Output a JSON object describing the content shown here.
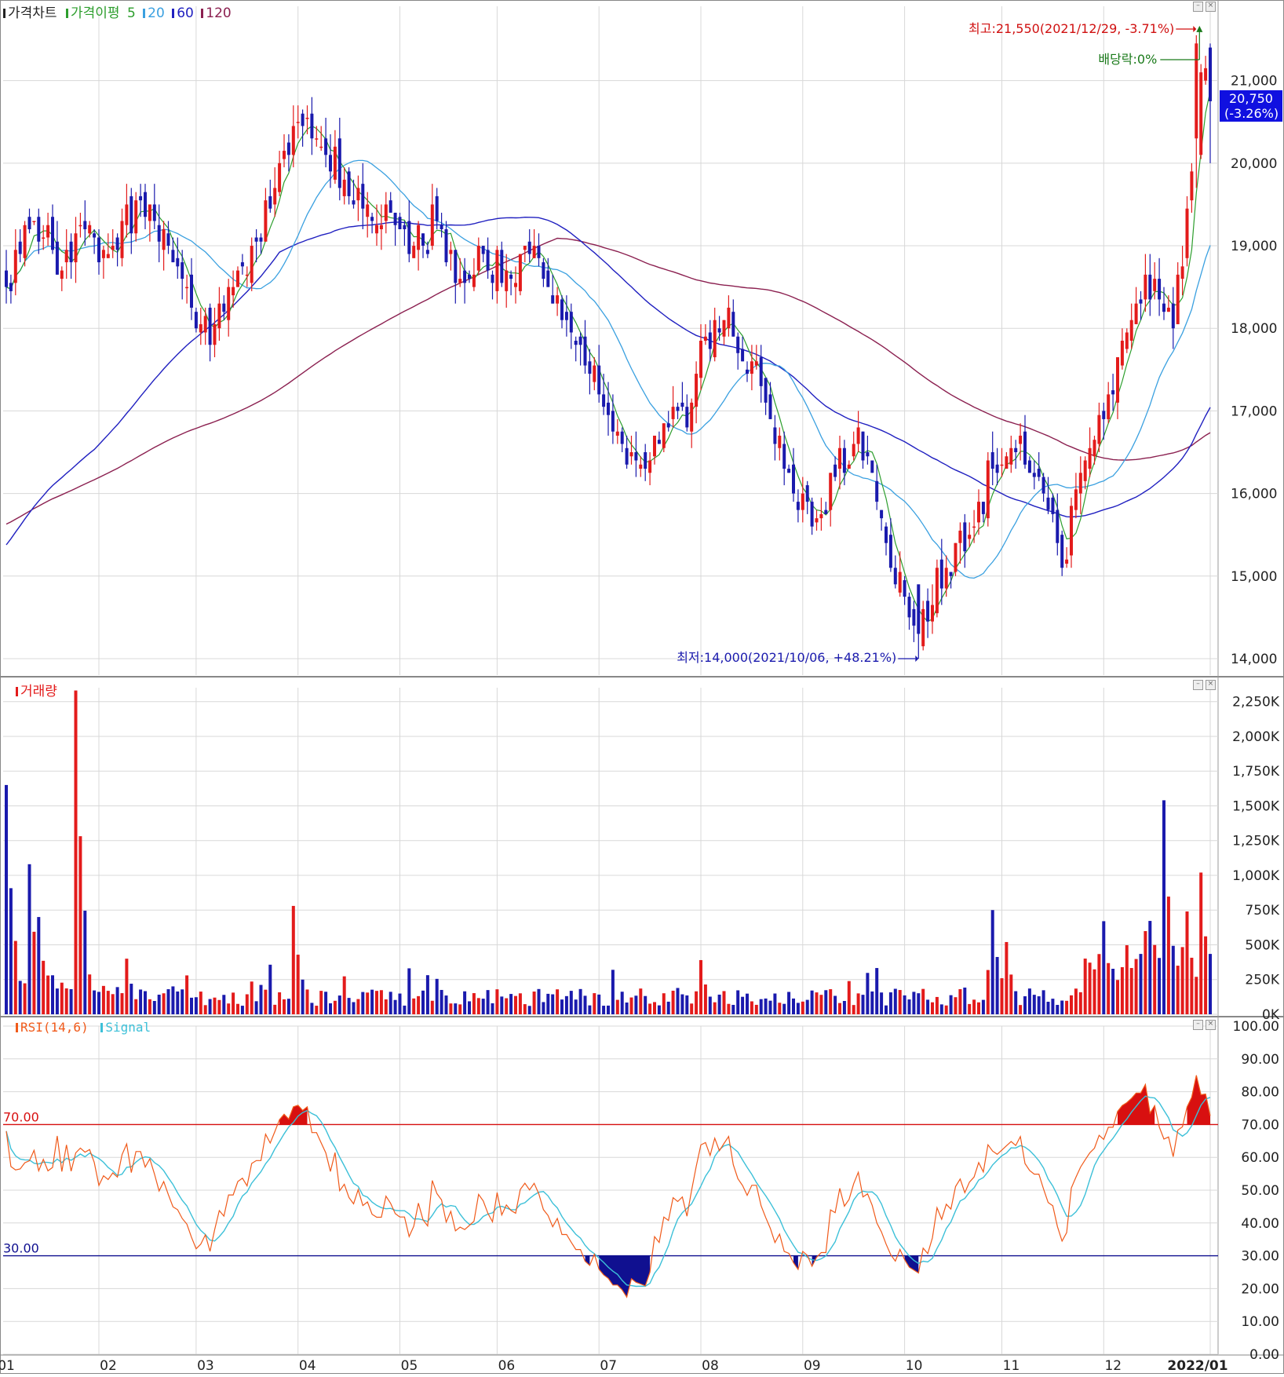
{
  "title_bar": {
    "price_label": "가격차트",
    "ma_label": "가격이평",
    "ma_periods": [
      "5",
      "20",
      "60",
      "120"
    ],
    "volume_label": "거래량",
    "rsi_label": "RSI(14,6)",
    "signal_label": "Signal"
  },
  "colors": {
    "up": "#e31b1b",
    "down": "#1a1aad",
    "ma5": "#2d9e2d",
    "ma20": "#3aa0e0",
    "ma60": "#2020c0",
    "ma120": "#8b2050",
    "rsi": "#f05a1a",
    "signal": "#3cc0d8",
    "overbought": "#d81010",
    "oversold": "#101090",
    "grid": "#d8d8d8"
  },
  "annotations": {
    "high_text": "최고:21,550(2021/12/29, -3.71%)",
    "low_text": "최저:14,000(2021/10/06, +48.21%)",
    "dividend_text": "배당락:0%",
    "last_price": "20,750",
    "last_change": "(-3.26%)"
  },
  "chart_data": [
    {
      "type": "candlestick",
      "name": "price",
      "ylim": [
        13800,
        21900
      ],
      "y_ticks": [
        "14,000",
        "15,000",
        "16,000",
        "17,000",
        "18,000",
        "19,000",
        "20,000",
        "21,000"
      ],
      "y_tick_values": [
        14000,
        15000,
        16000,
        17000,
        18000,
        19000,
        20000,
        21000
      ],
      "x_ticks": [
        "01",
        "02",
        "03",
        "04",
        "05",
        "06",
        "07",
        "08",
        "09",
        "10",
        "11",
        "12",
        "2022/01"
      ],
      "x_tick_dates": [
        "2021-01-04",
        "2021-02-01",
        "2021-03-02",
        "2021-04-01",
        "2021-05-03",
        "2021-06-01",
        "2021-07-01",
        "2021-08-02",
        "2021-09-01",
        "2021-10-01",
        "2021-11-01",
        "2021-12-01",
        "2022-01-03"
      ],
      "anchor_closes": [
        [
          "2021-01-04",
          18500
        ],
        [
          "2021-01-12",
          19300
        ],
        [
          "2021-01-20",
          18700
        ],
        [
          "2021-01-27",
          19200
        ],
        [
          "2021-02-01",
          18800
        ],
        [
          "2021-02-08",
          19300
        ],
        [
          "2021-02-16",
          19500
        ],
        [
          "2021-02-25",
          18600
        ],
        [
          "2021-03-05",
          17800
        ],
        [
          "2021-03-10",
          18200
        ],
        [
          "2021-03-18",
          19000
        ],
        [
          "2021-03-25",
          19700
        ],
        [
          "2021-04-01",
          20500
        ],
        [
          "2021-04-08",
          20200
        ],
        [
          "2021-04-15",
          19800
        ],
        [
          "2021-04-22",
          19500
        ],
        [
          "2021-04-29",
          19400
        ],
        [
          "2021-05-06",
          19000
        ],
        [
          "2021-05-13",
          19300
        ],
        [
          "2021-05-20",
          18600
        ],
        [
          "2021-05-27",
          18900
        ],
        [
          "2021-06-03",
          18700
        ],
        [
          "2021-06-10",
          18900
        ],
        [
          "2021-06-17",
          18300
        ],
        [
          "2021-06-24",
          17800
        ],
        [
          "2021-07-01",
          17200
        ],
        [
          "2021-07-08",
          16600
        ],
        [
          "2021-07-15",
          16300
        ],
        [
          "2021-07-22",
          16800
        ],
        [
          "2021-07-29",
          17100
        ],
        [
          "2021-08-03",
          17900
        ],
        [
          "2021-08-09",
          18100
        ],
        [
          "2021-08-17",
          17600
        ],
        [
          "2021-08-23",
          16900
        ],
        [
          "2021-08-30",
          16000
        ],
        [
          "2021-09-03",
          15600
        ],
        [
          "2021-09-10",
          16200
        ],
        [
          "2021-09-17",
          16800
        ],
        [
          "2021-09-27",
          15400
        ],
        [
          "2021-10-06",
          14300
        ],
        [
          "2021-10-14",
          15100
        ],
        [
          "2021-10-21",
          15500
        ],
        [
          "2021-10-28",
          16300
        ],
        [
          "2021-11-04",
          16500
        ],
        [
          "2021-11-11",
          16200
        ],
        [
          "2021-11-18",
          15100
        ],
        [
          "2021-11-25",
          16400
        ],
        [
          "2021-12-02",
          17200
        ],
        [
          "2021-12-09",
          18100
        ],
        [
          "2021-12-16",
          18600
        ],
        [
          "2021-12-22",
          18000
        ],
        [
          "2021-12-29",
          20200
        ],
        [
          "2021-12-30",
          21100
        ],
        [
          "2022-01-03",
          20750
        ]
      ],
      "series": [
        "price",
        "MA 5",
        "MA 20",
        "MA 60",
        "MA 120"
      ]
    },
    {
      "type": "bar",
      "name": "volume",
      "ylim": [
        0,
        2350000
      ],
      "y_ticks": [
        "0K",
        "250K",
        "500K",
        "750K",
        "1,000K",
        "1,250K",
        "1,500K",
        "1,750K",
        "2,000K",
        "2,250K"
      ],
      "y_tick_values": [
        0,
        250000,
        500000,
        750000,
        1000000,
        1250000,
        1500000,
        1750000,
        2000000,
        2250000
      ],
      "spikes": [
        [
          "2021-01-04",
          1650000
        ],
        [
          "2021-01-11",
          1080000
        ],
        [
          "2021-01-13",
          700000
        ],
        [
          "2021-01-25",
          2330000
        ],
        [
          "2021-03-31",
          780000
        ],
        [
          "2021-08-02",
          390000
        ],
        [
          "2021-10-28",
          750000
        ],
        [
          "2021-11-02",
          520000
        ],
        [
          "2021-12-01",
          670000
        ],
        [
          "2021-12-20",
          1540000
        ],
        [
          "2021-12-27",
          740000
        ],
        [
          "2021-12-30",
          1020000
        ]
      ]
    },
    {
      "type": "line",
      "name": "rsi",
      "ylim": [
        0,
        100
      ],
      "y_ticks": [
        "0.00",
        "10.00",
        "20.00",
        "30.00",
        "40.00",
        "50.00",
        "60.00",
        "70.00",
        "80.00",
        "90.00",
        "100.00"
      ],
      "y_tick_values": [
        0,
        10,
        20,
        30,
        40,
        50,
        60,
        70,
        80,
        90,
        100
      ],
      "upper_band": 70,
      "lower_band": 30,
      "upper_band_label": "70.00",
      "lower_band_label": "30.00",
      "series": [
        "RSI(14,6)",
        "Signal"
      ]
    }
  ]
}
